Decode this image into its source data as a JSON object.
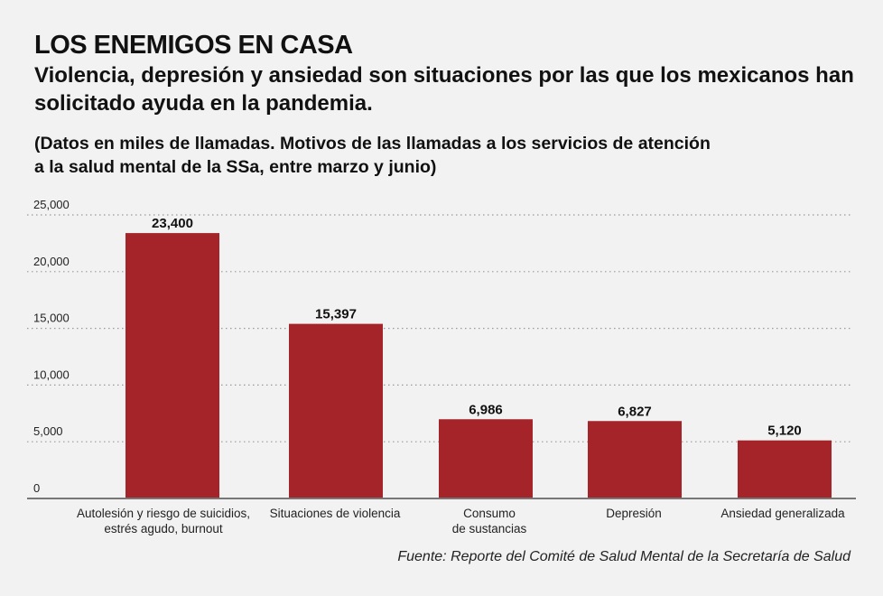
{
  "header": {
    "title": "LOS ENEMIGOS EN CASA",
    "subtitle": "Violencia, depresión y ansiedad son situaciones por las que los mexicanos han solicitado ayuda en la pandemia.",
    "note_line1": "(Datos en miles de llamadas. Motivos de las llamadas a los servicios de atención",
    "note_line2": "a la salud mental de la SSa, entre marzo y junio)"
  },
  "footer": {
    "source": "Fuente: Reporte del Comité de Salud Mental de la Secretaría de Salud"
  },
  "chart_data": {
    "type": "bar",
    "categories": [
      [
        "Autolesión y riesgo de suicidios,",
        "estrés agudo, burnout"
      ],
      [
        "Situaciones de violencia"
      ],
      [
        "Consumo",
        "de sustancias"
      ],
      [
        "Depresión"
      ],
      [
        "Ansiedad generalizada"
      ]
    ],
    "values": [
      23400,
      15397,
      6986,
      6827,
      5120
    ],
    "value_labels": [
      "23,400",
      "15,397",
      "6,986",
      "6,827",
      "5,120"
    ],
    "y_ticks": [
      0,
      5000,
      10000,
      15000,
      20000,
      25000
    ],
    "y_tick_labels": [
      "0",
      "5,000",
      "10,000",
      "15,000",
      "20,000",
      "25,000"
    ],
    "ylim": [
      0,
      25000
    ],
    "grid": "dotted horizontal",
    "bar_color": "#a4242a",
    "grid_color": "#9a9a9a",
    "axis_color": "#777777"
  }
}
